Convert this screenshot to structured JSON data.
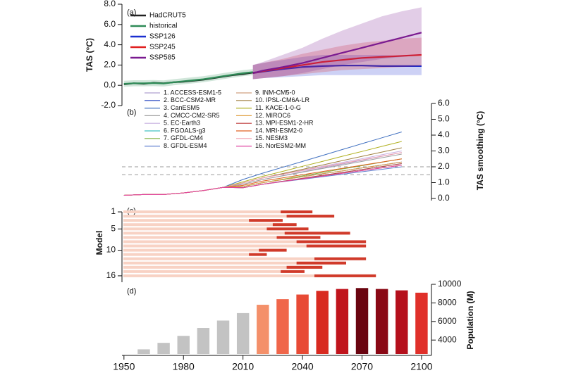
{
  "chart_data": [
    {
      "type": "line",
      "label": "(a)",
      "ylabel": "TAS (°C)",
      "xlim": [
        1949,
        2105
      ],
      "ylim": [
        -2,
        8
      ],
      "yticks": [
        {
          "value": -2,
          "label": "-2.0"
        },
        {
          "value": 0,
          "label": "0.0"
        },
        {
          "value": 2,
          "label": "2.0"
        },
        {
          "value": 4,
          "label": "4.0"
        },
        {
          "value": 6,
          "label": "6.0"
        },
        {
          "value": 8,
          "label": "8.0"
        }
      ],
      "series": [
        {
          "name": "HadCRUT5",
          "color": "#222222",
          "x": [
            1950,
            1955,
            1960,
            1965,
            1970,
            1975,
            1980,
            1985,
            1990,
            1995,
            2000,
            2005,
            2010,
            2015,
            2020
          ],
          "values": [
            0.1,
            0.2,
            0.15,
            0.25,
            0.2,
            0.3,
            0.35,
            0.45,
            0.55,
            0.7,
            0.85,
            1.0,
            1.1,
            1.25,
            1.35
          ]
        },
        {
          "name": "historical",
          "color": "#2e8b57",
          "x": [
            1950,
            1955,
            1960,
            1965,
            1970,
            1975,
            1980,
            1985,
            1990,
            1995,
            2000,
            2005,
            2010,
            2015
          ],
          "values": [
            0.15,
            0.2,
            0.2,
            0.22,
            0.18,
            0.3,
            0.4,
            0.5,
            0.6,
            0.75,
            0.9,
            1.05,
            1.2,
            1.3
          ],
          "lower": [
            -0.15,
            -0.1,
            -0.1,
            -0.08,
            -0.12,
            0.0,
            0.1,
            0.2,
            0.3,
            0.45,
            0.6,
            0.75,
            0.9,
            1.0
          ],
          "upper": [
            0.45,
            0.5,
            0.5,
            0.52,
            0.48,
            0.6,
            0.7,
            0.8,
            0.9,
            1.05,
            1.2,
            1.35,
            1.5,
            1.6
          ]
        },
        {
          "name": "SSP126",
          "color": "#1a2fd0",
          "x": [
            2015,
            2020,
            2030,
            2040,
            2050,
            2060,
            2070,
            2080,
            2090,
            2100
          ],
          "values": [
            1.2,
            1.35,
            1.6,
            1.8,
            1.9,
            1.95,
            1.95,
            1.9,
            1.9,
            1.9
          ],
          "lower": [
            0.6,
            0.7,
            0.8,
            0.9,
            1.0,
            1.0,
            1.0,
            1.0,
            1.0,
            1.0
          ],
          "upper": [
            2.0,
            2.2,
            2.5,
            2.8,
            3.0,
            3.0,
            3.0,
            3.0,
            2.9,
            2.9
          ]
        },
        {
          "name": "SSP245",
          "color": "#e02020",
          "x": [
            2015,
            2020,
            2030,
            2040,
            2050,
            2060,
            2070,
            2080,
            2090,
            2100
          ],
          "values": [
            1.2,
            1.4,
            1.7,
            2.0,
            2.3,
            2.5,
            2.7,
            2.8,
            2.9,
            3.0
          ],
          "lower": [
            0.6,
            0.7,
            0.9,
            1.1,
            1.3,
            1.5,
            1.6,
            1.7,
            1.8,
            1.9
          ],
          "upper": [
            2.0,
            2.2,
            2.6,
            3.1,
            3.5,
            3.9,
            4.2,
            4.4,
            4.6,
            4.7
          ]
        },
        {
          "name": "SSP585",
          "color": "#7a1a90",
          "x": [
            2015,
            2020,
            2030,
            2040,
            2050,
            2060,
            2070,
            2080,
            2090,
            2100
          ],
          "values": [
            1.2,
            1.45,
            1.8,
            2.2,
            2.7,
            3.2,
            3.7,
            4.2,
            4.7,
            5.2
          ],
          "lower": [
            0.6,
            0.7,
            0.9,
            1.2,
            1.6,
            2.0,
            2.3,
            2.6,
            2.8,
            3.0
          ],
          "upper": [
            2.0,
            2.3,
            3.0,
            3.7,
            4.6,
            5.4,
            6.1,
            6.8,
            7.3,
            7.7
          ]
        }
      ]
    },
    {
      "type": "line",
      "label": "(b)",
      "ylabel": "TAS smoothing (°C)",
      "xlim": [
        1949,
        2105
      ],
      "ylim": [
        0,
        6
      ],
      "yticks": [
        {
          "value": 0,
          "label": "0.0"
        },
        {
          "value": 1,
          "label": "1.0"
        },
        {
          "value": 2,
          "label": "2.0"
        },
        {
          "value": 3,
          "label": "3.0"
        },
        {
          "value": 4,
          "label": "4.0"
        },
        {
          "value": 5,
          "label": "5.0"
        },
        {
          "value": 6,
          "label": "6.0"
        }
      ],
      "reference_lines": [
        1.5,
        2.0
      ],
      "x": [
        1950,
        1960,
        1970,
        1980,
        1990,
        2000,
        2010,
        2020,
        2030,
        2040,
        2050,
        2060,
        2070,
        2080,
        2090
      ],
      "series": [
        {
          "name": "1. ACCESS-ESM1-5",
          "color": "#b0a0d0",
          "values": [
            0.2,
            0.25,
            0.25,
            0.35,
            0.5,
            0.7,
            0.9,
            1.2,
            1.44,
            1.69,
            1.93,
            2.17,
            2.41,
            2.66,
            2.9
          ]
        },
        {
          "name": "2. BCC-CSM2-MR",
          "color": "#2040c0",
          "values": [
            0.2,
            0.25,
            0.25,
            0.35,
            0.5,
            0.7,
            0.75,
            1.0,
            1.19,
            1.37,
            1.56,
            1.74,
            1.93,
            2.11,
            2.3
          ]
        },
        {
          "name": "3. CanESM5",
          "color": "#4070c0",
          "values": [
            0.2,
            0.25,
            0.25,
            0.35,
            0.5,
            0.7,
            1.2,
            1.6,
            1.97,
            2.34,
            2.71,
            3.09,
            3.46,
            3.83,
            4.2
          ]
        },
        {
          "name": "4. CMCC-CM2-SR5",
          "color": "#a0a0a0",
          "values": [
            0.2,
            0.25,
            0.25,
            0.35,
            0.5,
            0.7,
            0.9,
            1.2,
            1.43,
            1.66,
            1.89,
            2.11,
            2.34,
            2.57,
            2.8
          ]
        },
        {
          "name": "5. EC-Earth3",
          "color": "#c8b0e0",
          "values": [
            0.2,
            0.25,
            0.25,
            0.35,
            0.5,
            0.7,
            0.98,
            1.3,
            1.54,
            1.79,
            2.03,
            2.27,
            2.51,
            2.76,
            3.0
          ]
        },
        {
          "name": "6. FGOALS-g3",
          "color": "#40c0c0",
          "values": [
            0.2,
            0.25,
            0.25,
            0.35,
            0.5,
            0.7,
            0.68,
            0.9,
            1.09,
            1.27,
            1.46,
            1.64,
            1.83,
            2.01,
            2.2
          ]
        },
        {
          "name": "7. GFDL-CM4",
          "color": "#80b040",
          "values": [
            0.2,
            0.25,
            0.25,
            0.35,
            0.5,
            0.7,
            0.75,
            1.0,
            1.21,
            1.43,
            1.64,
            1.86,
            2.07,
            2.29,
            2.5
          ]
        },
        {
          "name": "8. GFDL-ESM4",
          "color": "#6080d0",
          "values": [
            0.2,
            0.25,
            0.25,
            0.35,
            0.5,
            0.7,
            0.68,
            0.9,
            1.06,
            1.21,
            1.37,
            1.53,
            1.69,
            1.84,
            2.0
          ]
        },
        {
          "name": "9. INM-CM5-0",
          "color": "#d0a080",
          "values": [
            0.2,
            0.25,
            0.25,
            0.35,
            0.5,
            0.7,
            0.68,
            0.9,
            1.07,
            1.24,
            1.41,
            1.59,
            1.76,
            1.93,
            2.1
          ]
        },
        {
          "name": "10. IPSL-CM6A-LR",
          "color": "#a08040",
          "values": [
            0.2,
            0.25,
            0.25,
            0.35,
            0.5,
            0.7,
            0.98,
            1.3,
            1.57,
            1.84,
            2.11,
            2.39,
            2.66,
            2.93,
            3.2
          ]
        },
        {
          "name": "11. KACE-1-0-G",
          "color": "#b0b020",
          "values": [
            0.2,
            0.25,
            0.25,
            0.35,
            0.5,
            0.7,
            1.05,
            1.4,
            1.71,
            2.03,
            2.34,
            2.66,
            2.97,
            3.29,
            3.6
          ]
        },
        {
          "name": "12. MIROC6",
          "color": "#e0a040",
          "values": [
            0.2,
            0.25,
            0.25,
            0.35,
            0.5,
            0.7,
            0.75,
            1.0,
            1.19,
            1.37,
            1.56,
            1.74,
            1.93,
            2.11,
            2.3
          ]
        },
        {
          "name": "13. MPI-ESM1-2-HR",
          "color": "#c04040",
          "values": [
            0.2,
            0.25,
            0.25,
            0.35,
            0.5,
            0.7,
            0.68,
            0.9,
            1.09,
            1.27,
            1.46,
            1.64,
            1.83,
            2.01,
            2.2
          ]
        },
        {
          "name": "14. MRI-ESM2-0",
          "color": "#e06020",
          "values": [
            0.2,
            0.25,
            0.25,
            0.35,
            0.5,
            0.7,
            0.83,
            1.1,
            1.3,
            1.5,
            1.7,
            1.9,
            2.1,
            2.3,
            2.5
          ]
        },
        {
          "name": "15. NESM3",
          "color": "#f0a0b0",
          "values": [
            0.2,
            0.25,
            0.25,
            0.35,
            0.5,
            0.7,
            0.98,
            1.3,
            1.53,
            1.76,
            1.99,
            2.21,
            2.44,
            2.67,
            2.9
          ]
        },
        {
          "name": "16. NorESM2-MM",
          "color": "#e040a0",
          "values": [
            0.2,
            0.25,
            0.25,
            0.35,
            0.5,
            0.7,
            0.68,
            0.9,
            1.07,
            1.24,
            1.41,
            1.59,
            1.76,
            1.93,
            2.1
          ]
        }
      ]
    },
    {
      "type": "range_bar",
      "label": "(c)",
      "ylabel": "Model",
      "xlim": [
        1949,
        2105
      ],
      "ylim": [
        0,
        17.5
      ],
      "yticks": [
        1,
        5,
        10,
        16
      ],
      "color": "#d03a2a",
      "stripe_color": "#f8d2c4",
      "models": [
        1,
        2,
        3,
        4,
        5,
        6,
        7,
        8,
        9,
        10,
        11,
        12,
        13,
        14,
        15,
        16
      ],
      "start": [
        2029,
        2032,
        2013,
        2025,
        2022,
        2031,
        2027,
        2037,
        2042,
        2018,
        2013,
        2046,
        2037,
        2032,
        2029,
        2046
      ],
      "end": [
        2045,
        2056,
        2030,
        2037,
        2043,
        2064,
        2049,
        2072,
        2072,
        2032,
        2022,
        2072,
        2062,
        2050,
        2041,
        2077
      ]
    },
    {
      "type": "bar",
      "label": "(d)",
      "ylabel": "Population (M)",
      "xlim": [
        1949,
        2105
      ],
      "xticks": [
        1950,
        1980,
        2010,
        2040,
        2070,
        2100
      ],
      "ylim": [
        2500,
        10000
      ],
      "yticks": [
        4000,
        6000,
        8000,
        10000
      ],
      "x": [
        1960,
        1970,
        1980,
        1990,
        2000,
        2010,
        2020,
        2030,
        2040,
        2050,
        2060,
        2070,
        2080,
        2090,
        2100
      ],
      "values": [
        3000,
        3700,
        4450,
        5300,
        6100,
        6900,
        7800,
        8400,
        8900,
        9300,
        9500,
        9600,
        9500,
        9350,
        9100
      ],
      "colors": [
        "#c3c3c3",
        "#c3c3c3",
        "#c3c3c3",
        "#c3c3c3",
        "#c3c3c3",
        "#c3c3c3",
        "#f4906a",
        "#f0664a",
        "#e84a35",
        "#d82a20",
        "#c0141c",
        "#6a0410",
        "#8a0815",
        "#b5101c",
        "#e0302a"
      ]
    }
  ]
}
